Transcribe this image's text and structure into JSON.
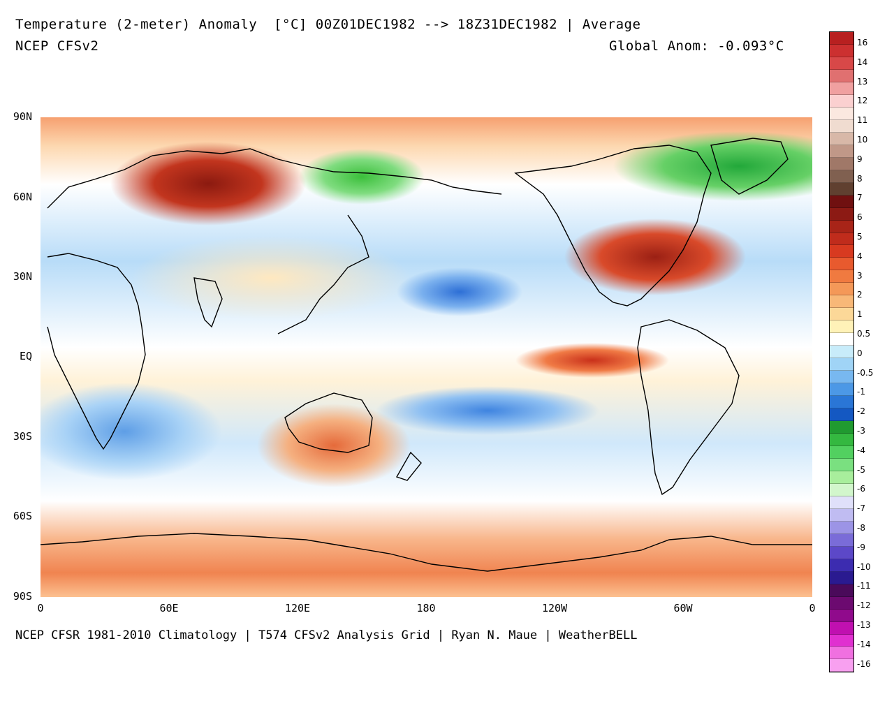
{
  "header": {
    "title": "Temperature (2-meter) Anomaly  [°C] 00Z01DEC1982 --> 18Z31DEC1982 | Average",
    "model": "NCEP CFSv2",
    "global_anom": "Global Anom: -0.093°C"
  },
  "axes": {
    "y_ticks": [
      "90N",
      "60N",
      "30N",
      "EQ",
      "30S",
      "60S",
      "90S"
    ],
    "x_ticks": [
      "0",
      "60E",
      "120E",
      "180",
      "120W",
      "60W",
      "0"
    ]
  },
  "footer": "NCEP CFSR 1981-2010 Climatology | T574 CFSv2 Analysis Grid | Ryan N. Maue | WeatherBELL",
  "colorbar": {
    "labels": [
      "16",
      "14",
      "13",
      "12",
      "11",
      "10",
      "9",
      "8",
      "7",
      "6",
      "5",
      "4",
      "3",
      "2",
      "1",
      "0.5",
      "0",
      "-0.5",
      "-1",
      "-2",
      "-3",
      "-4",
      "-5",
      "-6",
      "-7",
      "-8",
      "-9",
      "-10",
      "-11",
      "-12",
      "-13",
      "-14",
      "-16"
    ],
    "colors": [
      "#b82020",
      "#cc3030",
      "#d84848",
      "#e07070",
      "#f0a0a0",
      "#fbd0d0",
      "#fbe8e0",
      "#f0dcd0",
      "#d8b8a8",
      "#c09888",
      "#a07868",
      "#806050",
      "#604030",
      "#701010",
      "#8c1a14",
      "#a82418",
      "#c02c1c",
      "#d83a20",
      "#e85a2e",
      "#f07a40",
      "#f49858",
      "#f8b878",
      "#fcd898",
      "#fff2b8",
      "#ffffff",
      "#c8ecfa",
      "#a0d4f6",
      "#78b8f0",
      "#4c98e6",
      "#2a76d6",
      "#1458c2",
      "#209a30",
      "#34b840",
      "#52d060",
      "#7ae080",
      "#a8ee9c",
      "#d2f6cc",
      "#e0e0fa",
      "#c0bcf2",
      "#9c94e6",
      "#7a6cd8",
      "#5c48c8",
      "#3c2cb0",
      "#2a1a90",
      "#4a0a5a",
      "#6c0a70",
      "#900a8c",
      "#c010b0",
      "#e030d0",
      "#f070e0",
      "#f8a0f0"
    ]
  }
}
